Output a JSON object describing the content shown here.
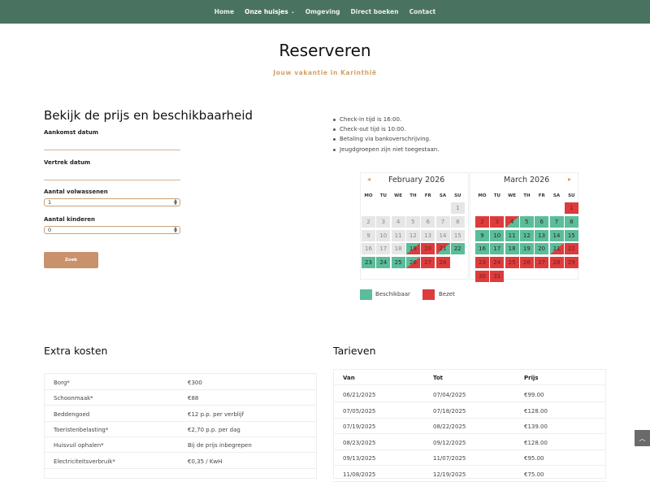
{
  "nav": {
    "items": [
      "Home",
      "Onze huisjes",
      "Omgeving",
      "Direct boeken",
      "Contact"
    ],
    "active": "Onze huisjes"
  },
  "hero": {
    "title": "Reserveren",
    "subtitle": "Jouw vakantie in Karinthië"
  },
  "form": {
    "title": "Bekijk de prijs en beschikbaarheid",
    "arrival_label": "Aankomst datum",
    "departure_label": "Vertrek datum",
    "adults_label": "Aantal volwassenen",
    "adults_value": "1",
    "children_label": "Aantal kinderen",
    "children_value": "0",
    "submit_label": "Zoek"
  },
  "info": [
    "Check-in tijd is 16:00.",
    "Check-out tijd is 10:00.",
    "Betaling via bankoverschrijving.",
    "Jeugdgroepen zijn niet toegestaan."
  ],
  "calendar": {
    "weekdays": [
      "MO",
      "TU",
      "WE",
      "TH",
      "FR",
      "SA",
      "SU"
    ],
    "months": [
      {
        "title": "February 2026",
        "offset": 6,
        "days": [
          "past",
          "past",
          "past",
          "past",
          "past",
          "past",
          "past",
          "past",
          "past",
          "past",
          "past",
          "past",
          "past",
          "past",
          "past",
          "past",
          "past",
          "past",
          "in",
          "busy",
          "out",
          "free",
          "free",
          "free",
          "free",
          "in",
          "busy",
          "busy"
        ]
      },
      {
        "title": "March 2026",
        "offset": 6,
        "days": [
          "busy",
          "busy",
          "busy",
          "out",
          "free",
          "free",
          "free",
          "free",
          "free",
          "free",
          "free",
          "free",
          "free",
          "free",
          "free",
          "free",
          "free",
          "free",
          "free",
          "free",
          "in",
          "busy",
          "busy",
          "busy",
          "busy",
          "busy",
          "busy",
          "busy",
          "busy",
          "busy",
          "busy"
        ]
      }
    ],
    "legend": {
      "free": "Beschikbaar",
      "busy": "Bezet"
    },
    "colors": {
      "free": "#5bbd9a",
      "busy": "#dc3c3c",
      "past": "#e6e6e6"
    }
  },
  "extra_costs": {
    "title": "Extra kosten",
    "rows": [
      [
        "Borg*",
        "€300"
      ],
      [
        "Schoonmaak*",
        "€88"
      ],
      [
        "Beddengoed",
        "€12 p.p. per verblijf"
      ],
      [
        "Toeristenbelasting*",
        "€2,70 p.p. per dag"
      ],
      [
        "Huisvuil ophalen*",
        "Bij de prijs inbegrepen"
      ],
      [
        "Electriciteitsverbruik*",
        "€0,35 / KwH"
      ]
    ]
  },
  "rates": {
    "title": "Tarieven",
    "headers": [
      "Van",
      "Tot",
      "Prijs"
    ],
    "rows": [
      [
        "06/21/2025",
        "07/04/2025",
        "€99.00"
      ],
      [
        "07/05/2025",
        "07/18/2025",
        "€128.00"
      ],
      [
        "07/19/2025",
        "08/22/2025",
        "€139.00"
      ],
      [
        "08/23/2025",
        "09/12/2025",
        "€128.00"
      ],
      [
        "09/13/2025",
        "11/07/2025",
        "€95.00"
      ],
      [
        "11/08/2025",
        "12/19/2025",
        "€75.00"
      ]
    ]
  }
}
